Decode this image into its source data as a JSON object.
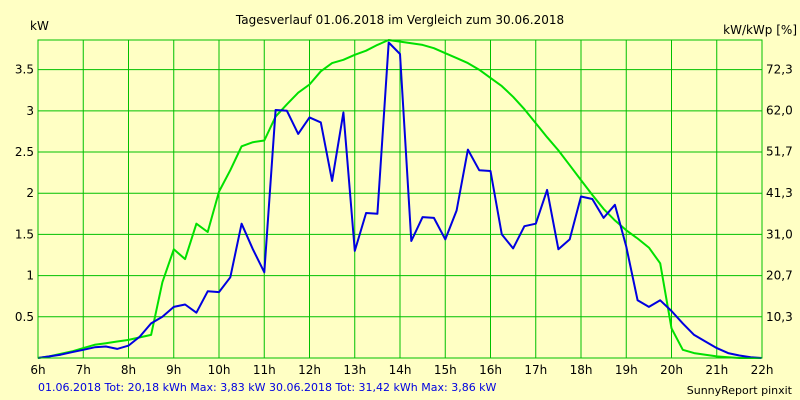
{
  "chart_data": {
    "type": "line",
    "title": "Tagesverlauf 01.06.2018 im Vergleich zum 30.06.2018",
    "ylabel_left": "kW",
    "ylabel_right": "kW/kWp [%]",
    "xlim": [
      6,
      22
    ],
    "ylim": [
      0,
      3.86
    ],
    "ylim_right": [
      0,
      79.7
    ],
    "grid": true,
    "x_ticks": [
      6,
      7,
      8,
      9,
      10,
      11,
      12,
      13,
      14,
      15,
      16,
      17,
      18,
      19,
      20,
      21,
      22
    ],
    "x_tick_labels": [
      "6h",
      "7h",
      "8h",
      "9h",
      "10h",
      "11h",
      "12h",
      "13h",
      "14h",
      "15h",
      "16h",
      "17h",
      "18h",
      "19h",
      "20h",
      "21h",
      "22h"
    ],
    "y_ticks": [
      0.5,
      1,
      1.5,
      2,
      2.5,
      3,
      3.5
    ],
    "y_tick_labels": [
      "0.5",
      "1",
      "1.5",
      "2",
      "2.5",
      "3",
      "3.5"
    ],
    "y_right_ticks": [
      10.3,
      20.7,
      31.0,
      41.3,
      51.7,
      62.0,
      72.3
    ],
    "y_right_tick_labels": [
      "10,3",
      "20,7",
      "31,0",
      "41,3",
      "51,7",
      "62,0",
      "72,3"
    ],
    "series": [
      {
        "name": "01.06.2018",
        "color": "#0000e0",
        "x": [
          6.25,
          6.5,
          6.75,
          7.0,
          7.25,
          7.5,
          7.75,
          8.0,
          8.25,
          8.5,
          8.75,
          9.0,
          9.25,
          9.5,
          9.75,
          10.0,
          10.25,
          10.5,
          10.75,
          11.0,
          11.25,
          11.5,
          11.75,
          12.0,
          12.25,
          12.5,
          12.75,
          13.0,
          13.25,
          13.5,
          13.75,
          14.0,
          14.25,
          14.5,
          14.75,
          15.0,
          15.25,
          15.5,
          15.75,
          16.0,
          16.25,
          16.5,
          16.75,
          17.0,
          17.25,
          17.5,
          17.75,
          18.0,
          18.25,
          18.5,
          18.75,
          19.0,
          19.25,
          19.5,
          19.75,
          20.0,
          20.25,
          20.5,
          20.75,
          21.0,
          21.25,
          21.5,
          21.75
        ],
        "values": [
          0.02,
          0.04,
          0.07,
          0.1,
          0.13,
          0.14,
          0.11,
          0.15,
          0.26,
          0.42,
          0.5,
          0.62,
          0.65,
          0.55,
          0.81,
          0.8,
          0.98,
          1.63,
          1.32,
          1.04,
          3.01,
          3.0,
          2.72,
          2.92,
          2.86,
          2.15,
          2.98,
          1.3,
          1.76,
          1.75,
          3.83,
          3.69,
          1.42,
          1.71,
          1.7,
          1.44,
          1.79,
          2.53,
          2.28,
          2.27,
          1.5,
          1.33,
          1.6,
          1.63,
          2.04,
          1.32,
          1.44,
          1.96,
          1.93,
          1.7,
          1.86,
          1.35,
          0.7,
          0.62,
          0.7,
          0.57,
          0.42,
          0.28,
          0.2,
          0.12,
          0.06,
          0.03,
          0.01
        ]
      },
      {
        "name": "30.06.2018",
        "color": "#00e000",
        "x": [
          6.25,
          6.5,
          6.75,
          7.0,
          7.25,
          7.5,
          7.75,
          8.0,
          8.25,
          8.5,
          8.75,
          9.0,
          9.25,
          9.5,
          9.75,
          10.0,
          10.25,
          10.5,
          10.75,
          11.0,
          11.25,
          11.5,
          11.75,
          12.0,
          12.25,
          12.5,
          12.75,
          13.0,
          13.25,
          13.5,
          13.75,
          14.0,
          14.25,
          14.5,
          14.75,
          15.0,
          15.25,
          15.5,
          15.75,
          16.0,
          16.25,
          16.5,
          16.75,
          17.0,
          17.25,
          17.5,
          17.75,
          18.0,
          18.25,
          18.5,
          18.75,
          19.0,
          19.25,
          19.5,
          19.75,
          20.0,
          20.25,
          20.5,
          20.75,
          21.0,
          21.25,
          21.5,
          21.75
        ],
        "values": [
          0.02,
          0.05,
          0.08,
          0.12,
          0.16,
          0.18,
          0.2,
          0.22,
          0.25,
          0.28,
          0.92,
          1.32,
          1.2,
          1.63,
          1.53,
          2.02,
          2.28,
          2.57,
          2.62,
          2.64,
          2.93,
          3.08,
          3.22,
          3.32,
          3.48,
          3.58,
          3.62,
          3.68,
          3.73,
          3.8,
          3.86,
          3.84,
          3.82,
          3.8,
          3.76,
          3.7,
          3.64,
          3.58,
          3.5,
          3.4,
          3.3,
          3.17,
          3.02,
          2.85,
          2.68,
          2.52,
          2.34,
          2.16,
          1.98,
          1.81,
          1.67,
          1.55,
          1.45,
          1.34,
          1.15,
          0.36,
          0.1,
          0.06,
          0.04,
          0.02,
          0.01,
          0.0,
          0.0
        ]
      }
    ]
  },
  "footer": {
    "series1_label": "01.06.2018",
    "series1_stats": "Tot: 20,18 kWh Max: 3,83 kW",
    "series2_label": "30.06.2018",
    "series2_stats": "Tot: 31,42 kWh Max: 3,86 kW",
    "credit": "SunnyReport pinxit"
  },
  "colors": {
    "background": "#ffffc4",
    "grid": "#00c000",
    "series1": "#0000e0",
    "series2": "#00e000",
    "footer_text": "#0000e0"
  }
}
